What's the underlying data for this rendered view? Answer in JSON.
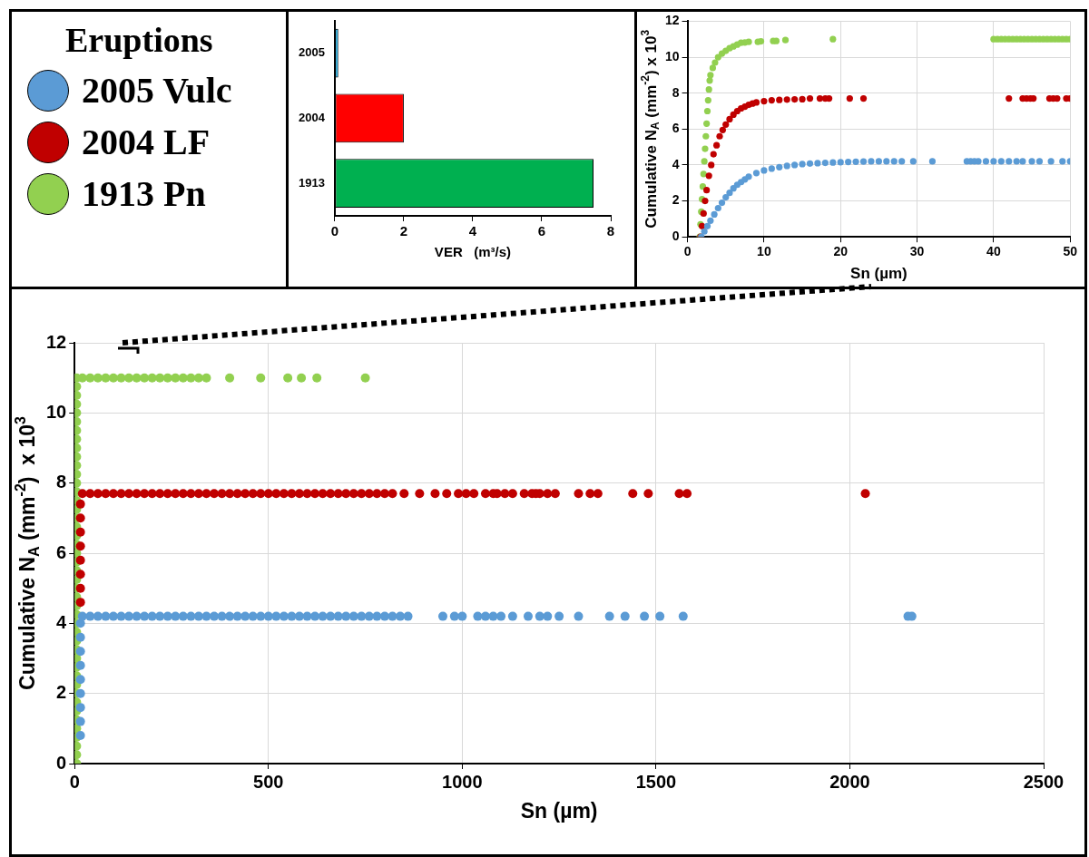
{
  "chart_data": [
    {
      "type": "bar",
      "orientation": "horizontal",
      "categories": [
        "2005",
        "2004",
        "1913"
      ],
      "values": [
        0.1,
        2,
        7.5
      ],
      "colors": [
        "#00b0f0",
        "#ff0000",
        "#00b050"
      ],
      "xlim": [
        0,
        8
      ],
      "xticks": [
        0,
        2,
        4,
        6,
        8
      ],
      "xlabel": "VER   (m³/s)"
    },
    {
      "type": "scatter",
      "xlabel": "Sn (µm)",
      "ylabel": "Cumulative N$_{A}$ (mm$^{-2}$) x 10$^{3}$",
      "xlim": [
        0,
        50
      ],
      "xticks": [
        0,
        10,
        20,
        30,
        40,
        50
      ],
      "ylim": [
        0,
        12
      ],
      "yticks": [
        0,
        2,
        4,
        6,
        8,
        10,
        12
      ],
      "grid": true,
      "marker": "circle",
      "series": [
        {
          "color": "#5b9bd5",
          "x": [
            1.8,
            2.2,
            2.6,
            3,
            3.5,
            4,
            4.5,
            5,
            5.5,
            6,
            6.5,
            7,
            7.5,
            8,
            9,
            10,
            11,
            12,
            13,
            14,
            15,
            16,
            17,
            18,
            19,
            20,
            21,
            22,
            23,
            24,
            25,
            26,
            27,
            28,
            29.5,
            32,
            36.5,
            37,
            37.5,
            38,
            39,
            40,
            41,
            42,
            43,
            43.8,
            45,
            46,
            47.5,
            49,
            50
          ],
          "values": [
            0,
            0.3,
            0.6,
            0.9,
            1.25,
            1.6,
            1.9,
            2.2,
            2.45,
            2.7,
            2.9,
            3.05,
            3.2,
            3.35,
            3.55,
            3.7,
            3.8,
            3.88,
            3.95,
            4,
            4.05,
            4.08,
            4.1,
            4.12,
            4.14,
            4.15,
            4.17,
            4.18,
            4.19,
            4.2,
            4.2,
            4.2,
            4.2,
            4.2,
            4.2,
            4.2,
            4.2,
            4.2,
            4.2,
            4.2,
            4.2,
            4.2,
            4.2,
            4.2,
            4.2,
            4.2,
            4.2,
            4.2,
            4.2,
            4.2,
            4.2
          ]
        },
        {
          "color": "#c00000",
          "x": [
            1.7,
            1.9,
            2.1,
            2.3,
            2.5,
            2.8,
            3.1,
            3.4,
            3.8,
            4.2,
            4.6,
            5,
            5.5,
            6,
            6.5,
            7,
            7.5,
            8,
            8.5,
            9,
            10,
            11,
            12,
            13,
            14,
            15,
            16,
            17.3,
            18,
            18.5,
            21.2,
            23,
            42,
            43.8,
            44.3,
            44.8,
            45.2,
            47.3,
            47.8,
            48.3,
            49.5,
            50
          ],
          "values": [
            0,
            0.6,
            1.3,
            2,
            2.6,
            3.4,
            4,
            4.6,
            5.1,
            5.6,
            5.95,
            6.25,
            6.55,
            6.8,
            7,
            7.15,
            7.25,
            7.35,
            7.42,
            7.48,
            7.55,
            7.6,
            7.62,
            7.64,
            7.65,
            7.66,
            7.7,
            7.7,
            7.7,
            7.7,
            7.7,
            7.7,
            7.7,
            7.7,
            7.7,
            7.7,
            7.7,
            7.7,
            7.7,
            7.7,
            7.7,
            7.7
          ]
        },
        {
          "color": "#92d050",
          "x": [
            1.6,
            1.7,
            1.8,
            1.9,
            2,
            2.1,
            2.2,
            2.3,
            2.4,
            2.5,
            2.6,
            2.7,
            2.8,
            2.9,
            3,
            3.3,
            3.6,
            4,
            4.5,
            5,
            5.5,
            6,
            6.5,
            7,
            7.5,
            8,
            9.2,
            9.6,
            11.2,
            11.6,
            12.8,
            19,
            40,
            40.5,
            41,
            41.5,
            42,
            42.5,
            43,
            43.5,
            44,
            44.5,
            45,
            45.5,
            46,
            46.5,
            47,
            47.5,
            48,
            48.5,
            49,
            49.5,
            50
          ],
          "values": [
            0,
            0.7,
            1.4,
            2.1,
            2.8,
            3.5,
            4.2,
            4.9,
            5.6,
            6.3,
            7,
            7.6,
            8.2,
            8.7,
            9,
            9.4,
            9.7,
            10,
            10.2,
            10.35,
            10.5,
            10.6,
            10.7,
            10.8,
            10.82,
            10.85,
            10.85,
            10.88,
            10.9,
            10.9,
            10.95,
            11,
            11,
            11,
            11,
            11,
            11,
            11,
            11,
            11,
            11,
            11,
            11,
            11,
            11,
            11,
            11,
            11,
            11,
            11,
            11,
            11,
            11
          ]
        }
      ]
    },
    {
      "type": "scatter",
      "xlabel": "Sn (µm)",
      "ylabel": "Cumulative N$_{A}$ (mm$^{-2}$)  x 10$^{3}$",
      "xlim": [
        0,
        2500
      ],
      "xticks": [
        0,
        500,
        1000,
        1500,
        2000,
        2500
      ],
      "ylim": [
        0,
        12
      ],
      "yticks": [
        0,
        2,
        4,
        6,
        8,
        10,
        12
      ],
      "grid": true,
      "marker": "circle",
      "legend": "top left",
      "legend_title": "Eruptions",
      "series": [
        {
          "name": "2005 Vulc",
          "color": "#5b9bd5",
          "x": [
            15,
            15,
            15,
            15,
            15,
            15,
            15,
            15,
            15,
            20,
            40,
            60,
            80,
            100,
            120,
            140,
            160,
            180,
            200,
            220,
            240,
            260,
            280,
            300,
            320,
            340,
            360,
            380,
            400,
            420,
            440,
            460,
            480,
            500,
            520,
            540,
            560,
            580,
            600,
            620,
            640,
            660,
            680,
            700,
            720,
            740,
            760,
            780,
            800,
            820,
            840,
            860,
            950,
            980,
            1000,
            1040,
            1060,
            1080,
            1100,
            1130,
            1170,
            1200,
            1220,
            1250,
            1300,
            1380,
            1420,
            1470,
            1510,
            1570,
            2150,
            2160
          ],
          "values": [
            0.8,
            1.2,
            1.6,
            2,
            2.4,
            2.8,
            3.2,
            3.6,
            4,
            4.2,
            4.2,
            4.2,
            4.2,
            4.2,
            4.2,
            4.2,
            4.2,
            4.2,
            4.2,
            4.2,
            4.2,
            4.2,
            4.2,
            4.2,
            4.2,
            4.2,
            4.2,
            4.2,
            4.2,
            4.2,
            4.2,
            4.2,
            4.2,
            4.2,
            4.2,
            4.2,
            4.2,
            4.2,
            4.2,
            4.2,
            4.2,
            4.2,
            4.2,
            4.2,
            4.2,
            4.2,
            4.2,
            4.2,
            4.2,
            4.2,
            4.2,
            4.2,
            4.2,
            4.2,
            4.2,
            4.2,
            4.2,
            4.2,
            4.2,
            4.2,
            4.2,
            4.2,
            4.2,
            4.2,
            4.2,
            4.2,
            4.2,
            4.2,
            4.2,
            4.2,
            4.2,
            4.2
          ]
        },
        {
          "name": "2004 LF",
          "color": "#c00000",
          "x": [
            15,
            15,
            15,
            15,
            15,
            15,
            15,
            15,
            20,
            40,
            60,
            80,
            100,
            120,
            140,
            160,
            180,
            200,
            220,
            240,
            260,
            280,
            300,
            320,
            340,
            360,
            380,
            400,
            420,
            440,
            460,
            480,
            500,
            520,
            540,
            560,
            580,
            600,
            620,
            640,
            660,
            680,
            700,
            720,
            740,
            760,
            780,
            800,
            820,
            850,
            890,
            930,
            960,
            990,
            1010,
            1030,
            1060,
            1080,
            1090,
            1110,
            1130,
            1160,
            1180,
            1190,
            1200,
            1220,
            1240,
            1300,
            1330,
            1350,
            1440,
            1480,
            1560,
            1580,
            2040
          ],
          "values": [
            4.6,
            5,
            5.4,
            5.8,
            6.2,
            6.6,
            7,
            7.4,
            7.7,
            7.7,
            7.7,
            7.7,
            7.7,
            7.7,
            7.7,
            7.7,
            7.7,
            7.7,
            7.7,
            7.7,
            7.7,
            7.7,
            7.7,
            7.7,
            7.7,
            7.7,
            7.7,
            7.7,
            7.7,
            7.7,
            7.7,
            7.7,
            7.7,
            7.7,
            7.7,
            7.7,
            7.7,
            7.7,
            7.7,
            7.7,
            7.7,
            7.7,
            7.7,
            7.7,
            7.7,
            7.7,
            7.7,
            7.7,
            7.7,
            7.7,
            7.7,
            7.7,
            7.7,
            7.7,
            7.7,
            7.7,
            7.7,
            7.7,
            7.7,
            7.7,
            7.7,
            7.7,
            7.7,
            7.7,
            7.7,
            7.7,
            7.7,
            7.7,
            7.7,
            7.7,
            7.7,
            7.7,
            7.7,
            7.7,
            7.7
          ]
        },
        {
          "name": "1913 Pn",
          "color": "#92d050",
          "x": [
            5,
            5,
            5,
            5,
            5,
            5,
            5,
            5,
            5,
            5,
            5,
            5,
            5,
            5,
            5,
            5,
            5,
            5,
            5,
            5,
            5,
            5,
            5,
            5,
            5,
            5,
            5,
            5,
            5,
            5,
            5,
            5,
            5,
            5,
            5,
            5,
            5,
            5,
            5,
            5,
            5,
            5,
            5,
            5,
            5,
            20,
            40,
            60,
            80,
            100,
            120,
            140,
            160,
            180,
            200,
            220,
            240,
            260,
            280,
            300,
            320,
            340,
            400,
            480,
            550,
            585,
            625,
            750
          ],
          "values": [
            0,
            0.25,
            0.5,
            0.75,
            1,
            1.25,
            1.5,
            1.75,
            2,
            2.25,
            2.5,
            2.75,
            3,
            3.25,
            3.5,
            3.75,
            4,
            4.25,
            4.5,
            4.75,
            5,
            5.25,
            5.5,
            5.75,
            6,
            6.25,
            6.5,
            6.75,
            7,
            7.25,
            7.5,
            7.75,
            8,
            8.25,
            8.5,
            8.75,
            9,
            9.25,
            9.5,
            9.75,
            10,
            10.25,
            10.5,
            10.75,
            11,
            11,
            11,
            11,
            11,
            11,
            11,
            11,
            11,
            11,
            11,
            11,
            11,
            11,
            11,
            11,
            11,
            11,
            11,
            11,
            11,
            11,
            11,
            11
          ]
        }
      ]
    }
  ]
}
